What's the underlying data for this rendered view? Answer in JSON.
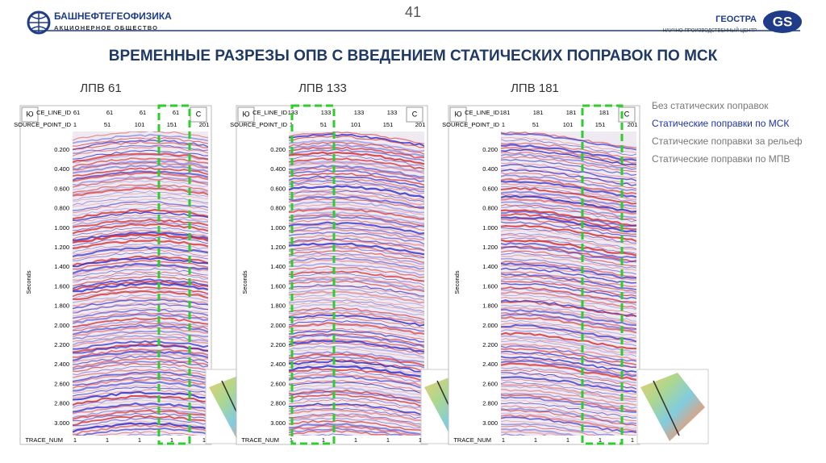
{
  "header": {
    "company": "БАШНЕФТЕГЕОФИЗИКА",
    "company_sub": "АКЦИОНЕРНОЕ ОБЩЕСТВО",
    "page_number": "41",
    "partner": "ГЕОСТРА",
    "partner_logo": "GS",
    "partner_sub": "НАУЧНО-ПРОИЗВОДСТВЕННЫЙ ЦЕНТР"
  },
  "title": "ВРЕМЕННЫЕ РАЗРЕЗЫ ОПВ С ВВЕДЕНИЕМ СТАТИЧЕСКИХ ПОПРАВОК ПО МСК",
  "legend": [
    "Без статических поправок",
    "Статические поправки по МСК",
    "Статические поправки за рельеф",
    "Статические поправки по МПВ"
  ],
  "panels": [
    {
      "label": "ЛПВ 61",
      "south": "Ю",
      "north": "С",
      "line_id_label": "CE_LINE_ID",
      "line_ids": [
        "61",
        "61",
        "61",
        "61"
      ],
      "source_label": "SOURCE_POINT_ID",
      "source_ids": [
        "1",
        "51",
        "101",
        "151",
        "201"
      ],
      "y_label": "Seconds",
      "y_ticks": [
        "0.200",
        "0.400",
        "0.600",
        "0.800",
        "1.000",
        "1.200",
        "1.400",
        "1.600",
        "1.800",
        "2.000",
        "2.200",
        "2.400",
        "2.600",
        "2.800",
        "3.000"
      ],
      "trace_label": "TRACE_NUM",
      "trace_nums": [
        "1",
        "1",
        "1",
        "1",
        "1"
      ]
    },
    {
      "label": "ЛПВ 133",
      "south": "Ю",
      "north": "С",
      "line_id_label": "CE_LINE_ID",
      "line_ids": [
        "133",
        "133",
        "133",
        "133"
      ],
      "source_label": "SOURCE_POINT_ID",
      "source_ids": [
        "1",
        "51",
        "101",
        "151",
        "201"
      ],
      "y_label": "Seconds",
      "y_ticks": [
        "0.200",
        "0.400",
        "0.600",
        "0.800",
        "1.000",
        "1.200",
        "1.400",
        "1.600",
        "1.800",
        "2.000",
        "2.200",
        "2.400",
        "2.600",
        "2.800",
        "3.000"
      ],
      "trace_label": "TRACE_NUM",
      "trace_nums": [
        "1",
        "1",
        "1",
        "1",
        "1"
      ]
    },
    {
      "label": "ЛПВ 181",
      "south": "Ю",
      "north": "С",
      "line_id_label": "CE_LINE_ID",
      "line_ids": [
        "181",
        "181",
        "181",
        "181"
      ],
      "source_label": "SOURCE_POINT_ID",
      "source_ids": [
        "1",
        "51",
        "101",
        "151",
        "201"
      ],
      "y_label": "Seconds",
      "y_ticks": [
        "0.200",
        "0.400",
        "0.600",
        "0.800",
        "1.000",
        "1.200",
        "1.400",
        "1.600",
        "1.800",
        "2.000",
        "2.200",
        "2.400",
        "2.600",
        "2.800",
        "3.000"
      ],
      "trace_label": "TRACE_NUM",
      "trace_nums": [
        "1",
        "1",
        "1",
        "1",
        "1"
      ]
    }
  ]
}
